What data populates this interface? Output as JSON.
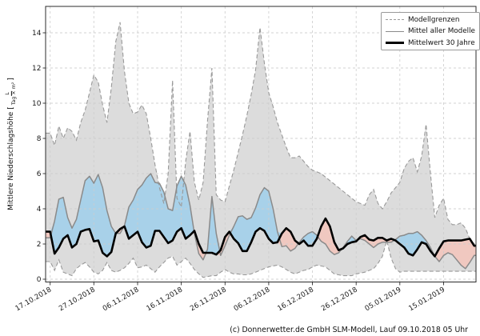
{
  "figure": {
    "footer": "(c) Donnerwetter.de GmbH SLM-Modell, Lauf 09.10.2018 05 Uhr"
  },
  "colors": {
    "band_fill": "#dcdcdc",
    "boundary_line": "#999999",
    "mean_line": "#8a8a8a",
    "clim_line": "#000000",
    "above_fill": "#a8d1e9",
    "below_fill": "#f0c8c0",
    "grid": "#cdcdcd",
    "frame": "#2b2b2b",
    "tick_text": "#1a1a1a"
  },
  "chart_data": {
    "type": "line",
    "title": "",
    "ylabel": {
      "prefix": "Mittlere Niederschlagshöhe [",
      "frac_num": "L",
      "frac_den": "Tag × m²",
      "suffix": "]"
    },
    "x_start": "17.10.2018",
    "x_step_days": 1,
    "x_tick_days": [
      0,
      10,
      20,
      30,
      40,
      50,
      60,
      70,
      80,
      90
    ],
    "x_tick_labels": [
      "17.10.2018",
      "27.10.2018",
      "06.11.2018",
      "16.11.2018",
      "26.11.2018",
      "06.12.2018",
      "16.12.2018",
      "26.12.2018",
      "05.01.2019",
      "15.01.2019"
    ],
    "yticks": [
      0,
      2,
      4,
      6,
      8,
      10,
      12,
      14
    ],
    "ylim": [
      -0.2,
      15.6
    ],
    "grid": true,
    "legend": {
      "position": "upper right",
      "entries": [
        {
          "label": "Modellgrenzen",
          "style": "dashed-gray"
        },
        {
          "label": "Mittel aller Modelle",
          "style": "solid-gray"
        },
        {
          "label": "Mittelwert 30 Jahre",
          "style": "solid-black-thick"
        }
      ]
    },
    "series": [
      {
        "name": "Modellgrenzen (obere Grenze)",
        "style": "dashed-gray",
        "values": [
          8.3,
          7.6,
          8.7,
          8.0,
          8.6,
          8.4,
          7.9,
          8.9,
          9.6,
          10.6,
          11.6,
          11.2,
          9.9,
          8.9,
          10.9,
          13.5,
          14.6,
          11.8,
          10.0,
          9.4,
          9.5,
          9.9,
          9.4,
          8.0,
          6.5,
          5.2,
          4.3,
          6.0,
          11.3,
          4.6,
          4.1,
          6.7,
          8.4,
          5.5,
          4.5,
          5.5,
          9.0,
          12.0,
          4.8,
          4.5,
          4.4,
          5.3,
          6.2,
          7.2,
          8.2,
          9.3,
          10.5,
          11.9,
          14.3,
          12.3,
          10.6,
          9.8,
          8.9,
          8.2,
          7.5,
          6.9,
          6.9,
          7.0,
          6.7,
          6.4,
          6.2,
          6.1,
          6.0,
          5.8,
          5.6,
          5.4,
          5.2,
          5.0,
          4.8,
          4.6,
          4.4,
          4.3,
          4.2,
          4.8,
          5.1,
          4.3,
          4.0,
          4.4,
          4.9,
          5.2,
          5.5,
          6.3,
          6.7,
          6.9,
          6.1,
          7.0,
          8.8,
          6.0,
          3.5,
          4.2,
          4.6,
          3.4,
          3.1,
          3.1,
          3.2,
          2.9,
          2.3,
          2.0
        ]
      },
      {
        "name": "Modellgrenzen (untere Grenze)",
        "style": "dashed-gray",
        "values": [
          1.0,
          0.5,
          1.1,
          0.4,
          0.3,
          0.2,
          0.6,
          0.8,
          0.95,
          0.7,
          0.4,
          0.3,
          0.5,
          0.95,
          0.5,
          0.4,
          0.5,
          0.65,
          0.9,
          1.2,
          0.65,
          0.7,
          0.8,
          0.6,
          0.4,
          0.7,
          0.95,
          1.2,
          1.3,
          0.8,
          1.0,
          1.2,
          0.9,
          0.55,
          0.3,
          0.1,
          0.15,
          0.2,
          0.2,
          0.4,
          0.55,
          0.4,
          0.3,
          0.3,
          0.25,
          0.25,
          0.3,
          0.4,
          0.5,
          0.6,
          0.7,
          0.75,
          0.8,
          0.7,
          0.55,
          0.4,
          0.3,
          0.4,
          0.5,
          0.55,
          0.7,
          0.8,
          0.75,
          0.7,
          0.5,
          0.3,
          0.25,
          0.2,
          0.2,
          0.2,
          0.3,
          0.35,
          0.4,
          0.5,
          0.6,
          0.9,
          1.3,
          2.2,
          1.2,
          0.6,
          0.4,
          0.45,
          0.45,
          0.45,
          0.45,
          0.45,
          0.45,
          0.45,
          0.45,
          0.45,
          0.45,
          0.45,
          0.45,
          0.45,
          0.45,
          0.45,
          0.45,
          0.45
        ]
      },
      {
        "name": "Mittel aller Modelle",
        "style": "solid-gray",
        "values": [
          2.35,
          3.3,
          4.55,
          4.65,
          3.5,
          2.9,
          3.4,
          4.5,
          5.6,
          5.85,
          5.45,
          5.95,
          5.2,
          3.9,
          3.0,
          2.6,
          2.6,
          3.05,
          4.1,
          4.5,
          5.1,
          5.35,
          5.75,
          6.0,
          5.5,
          5.45,
          4.95,
          4.0,
          3.9,
          5.3,
          5.85,
          5.35,
          4.2,
          2.6,
          1.45,
          1.1,
          1.7,
          4.7,
          2.6,
          1.35,
          1.9,
          2.5,
          3.0,
          3.55,
          3.6,
          3.4,
          3.5,
          4.05,
          4.8,
          5.2,
          5.0,
          4.0,
          2.7,
          1.85,
          1.9,
          1.6,
          1.75,
          2.1,
          2.4,
          2.6,
          2.7,
          2.5,
          2.15,
          2.0,
          1.6,
          1.4,
          1.5,
          1.8,
          2.15,
          2.45,
          2.2,
          2.3,
          2.2,
          2.0,
          1.8,
          2.0,
          2.1,
          2.1,
          2.1,
          2.25,
          2.45,
          2.5,
          2.6,
          2.6,
          2.7,
          2.5,
          2.2,
          1.8,
          1.3,
          1.0,
          1.35,
          1.5,
          1.4,
          1.1,
          0.8,
          0.6,
          0.95,
          1.35
        ]
      },
      {
        "name": "Mittelwert 30 Jahre",
        "style": "solid-black-thick",
        "values": [
          2.7,
          1.45,
          1.8,
          2.3,
          2.5,
          1.8,
          2.0,
          2.7,
          2.8,
          2.85,
          2.15,
          2.2,
          1.5,
          1.3,
          1.55,
          2.6,
          2.85,
          3.0,
          2.3,
          2.5,
          2.7,
          2.1,
          1.8,
          1.9,
          2.75,
          2.75,
          2.4,
          2.05,
          2.2,
          2.7,
          2.9,
          2.3,
          2.5,
          2.75,
          2.0,
          1.5,
          1.5,
          1.5,
          1.4,
          1.65,
          2.4,
          2.7,
          2.3,
          2.05,
          1.6,
          1.6,
          2.1,
          2.7,
          2.9,
          2.75,
          2.3,
          2.05,
          2.1,
          2.6,
          2.9,
          2.7,
          2.2,
          2.0,
          2.2,
          1.9,
          1.9,
          2.3,
          3.0,
          3.45,
          3.0,
          2.1,
          1.65,
          1.75,
          2.0,
          2.1,
          2.15,
          2.4,
          2.5,
          2.25,
          2.2,
          2.35,
          2.35,
          2.2,
          2.3,
          2.2,
          2.0,
          1.8,
          1.45,
          1.35,
          1.7,
          2.1,
          2.0,
          1.6,
          1.3,
          1.75,
          2.15,
          2.2,
          2.2,
          2.2,
          2.2,
          2.25,
          2.3,
          1.9
        ]
      }
    ]
  }
}
